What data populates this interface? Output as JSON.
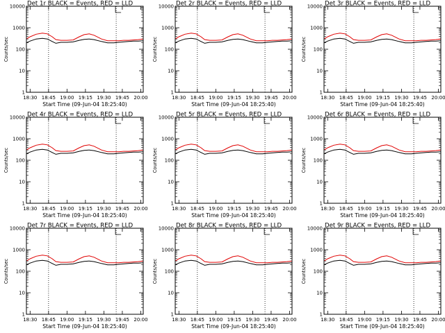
{
  "chart_data": {
    "type": "line",
    "y_scale": "log",
    "ylim": [
      1,
      10000
    ],
    "y_ticks": [
      1,
      10,
      100,
      1000,
      10000
    ],
    "y_tick_labels": [
      "1",
      "10",
      "100",
      "1000",
      "10000"
    ],
    "ylabel": "Counts/sec",
    "xlabel": "Start Time (09-Jun-04 18:25:40)",
    "x_unit": "minutes after 18:30",
    "xlim": [
      -3,
      92
    ],
    "x_ticks": [
      0,
      15,
      30,
      45,
      60,
      75,
      90
    ],
    "x_tick_labels": [
      "18:30",
      "18:45",
      "19:00",
      "19:15",
      "19:30",
      "19:45",
      "20:00"
    ],
    "markers_x": [
      15,
      70
    ],
    "series_names": [
      "Events",
      "LLD"
    ],
    "series_colors": {
      "Events": "#000000",
      "LLD": "#e00000",
      "marker": "#000000"
    },
    "x": [
      -3,
      0,
      5,
      10,
      14,
      18,
      21,
      25,
      30,
      35,
      40,
      44,
      48,
      52,
      58,
      63,
      68,
      72,
      76,
      80,
      84,
      88,
      92
    ],
    "panels": [
      {
        "title": "Det 1r BLACK = Events, RED = LLD",
        "events": [
          200,
          240,
          300,
          320,
          300,
          230,
          190,
          210,
          210,
          220,
          260,
          290,
          300,
          280,
          230,
          200,
          200,
          210,
          220,
          230,
          240,
          240,
          250
        ],
        "lld": [
          300,
          380,
          500,
          560,
          520,
          380,
          280,
          260,
          260,
          270,
          380,
          480,
          520,
          450,
          300,
          250,
          250,
          250,
          260,
          260,
          270,
          280,
          300
        ]
      },
      {
        "title": "Det 2r BLACK = Events, RED = LLD",
        "events": [
          200,
          240,
          300,
          320,
          300,
          230,
          190,
          210,
          210,
          220,
          260,
          290,
          300,
          280,
          230,
          200,
          200,
          210,
          220,
          230,
          240,
          240,
          250
        ],
        "lld": [
          300,
          380,
          500,
          560,
          520,
          380,
          280,
          260,
          260,
          270,
          380,
          480,
          520,
          450,
          300,
          250,
          250,
          250,
          260,
          260,
          270,
          280,
          300
        ]
      },
      {
        "title": "Det 3r BLACK = Events, RED = LLD",
        "events": [
          200,
          240,
          300,
          320,
          300,
          230,
          190,
          210,
          210,
          220,
          260,
          290,
          300,
          280,
          230,
          200,
          200,
          210,
          220,
          230,
          240,
          240,
          250
        ],
        "lld": [
          300,
          380,
          500,
          560,
          520,
          380,
          280,
          260,
          260,
          270,
          380,
          480,
          520,
          450,
          300,
          250,
          250,
          250,
          260,
          260,
          270,
          280,
          300
        ]
      },
      {
        "title": "Det 4r BLACK = Events, RED = LLD",
        "events": [
          200,
          240,
          300,
          320,
          300,
          230,
          190,
          210,
          210,
          220,
          260,
          290,
          300,
          280,
          230,
          200,
          200,
          210,
          220,
          230,
          240,
          240,
          250
        ],
        "lld": [
          300,
          380,
          500,
          560,
          520,
          380,
          280,
          260,
          260,
          270,
          380,
          480,
          520,
          450,
          300,
          250,
          250,
          250,
          260,
          260,
          270,
          280,
          300
        ]
      },
      {
        "title": "Det 5r BLACK = Events, RED = LLD",
        "events": [
          200,
          240,
          300,
          320,
          300,
          230,
          190,
          210,
          210,
          220,
          260,
          290,
          300,
          280,
          230,
          200,
          200,
          210,
          220,
          230,
          240,
          240,
          250
        ],
        "lld": [
          300,
          380,
          500,
          560,
          520,
          380,
          280,
          260,
          260,
          270,
          380,
          480,
          520,
          450,
          300,
          250,
          250,
          250,
          260,
          260,
          270,
          280,
          300
        ]
      },
      {
        "title": "Det 6r BLACK = Events, RED = LLD",
        "events": [
          200,
          240,
          300,
          320,
          300,
          230,
          190,
          210,
          210,
          220,
          260,
          290,
          300,
          280,
          230,
          200,
          200,
          210,
          220,
          230,
          240,
          240,
          250
        ],
        "lld": [
          300,
          380,
          500,
          560,
          520,
          380,
          280,
          260,
          260,
          270,
          380,
          480,
          520,
          450,
          300,
          250,
          250,
          250,
          260,
          260,
          270,
          280,
          300
        ]
      },
      {
        "title": "Det 7r BLACK = Events, RED = LLD",
        "events": [
          200,
          240,
          300,
          320,
          300,
          230,
          190,
          210,
          210,
          220,
          260,
          290,
          300,
          280,
          230,
          200,
          200,
          210,
          220,
          230,
          240,
          240,
          250
        ],
        "lld": [
          300,
          380,
          500,
          560,
          520,
          380,
          280,
          260,
          260,
          270,
          380,
          480,
          520,
          450,
          300,
          250,
          250,
          250,
          260,
          260,
          270,
          280,
          300
        ]
      },
      {
        "title": "Det 8r BLACK = Events, RED = LLD",
        "events": [
          200,
          240,
          300,
          320,
          300,
          230,
          190,
          210,
          210,
          220,
          260,
          290,
          300,
          280,
          230,
          200,
          200,
          210,
          220,
          230,
          240,
          240,
          250
        ],
        "lld": [
          300,
          380,
          500,
          560,
          520,
          380,
          280,
          260,
          260,
          270,
          380,
          480,
          520,
          450,
          300,
          250,
          250,
          250,
          260,
          260,
          270,
          280,
          300
        ]
      },
      {
        "title": "Det 9r BLACK = Events, RED = LLD",
        "events": [
          200,
          240,
          300,
          320,
          300,
          230,
          190,
          210,
          210,
          220,
          260,
          290,
          300,
          280,
          230,
          200,
          200,
          210,
          220,
          230,
          240,
          240,
          250
        ],
        "lld": [
          300,
          380,
          500,
          560,
          520,
          380,
          280,
          260,
          260,
          270,
          380,
          480,
          520,
          450,
          300,
          250,
          250,
          250,
          260,
          260,
          270,
          280,
          300
        ]
      }
    ]
  }
}
